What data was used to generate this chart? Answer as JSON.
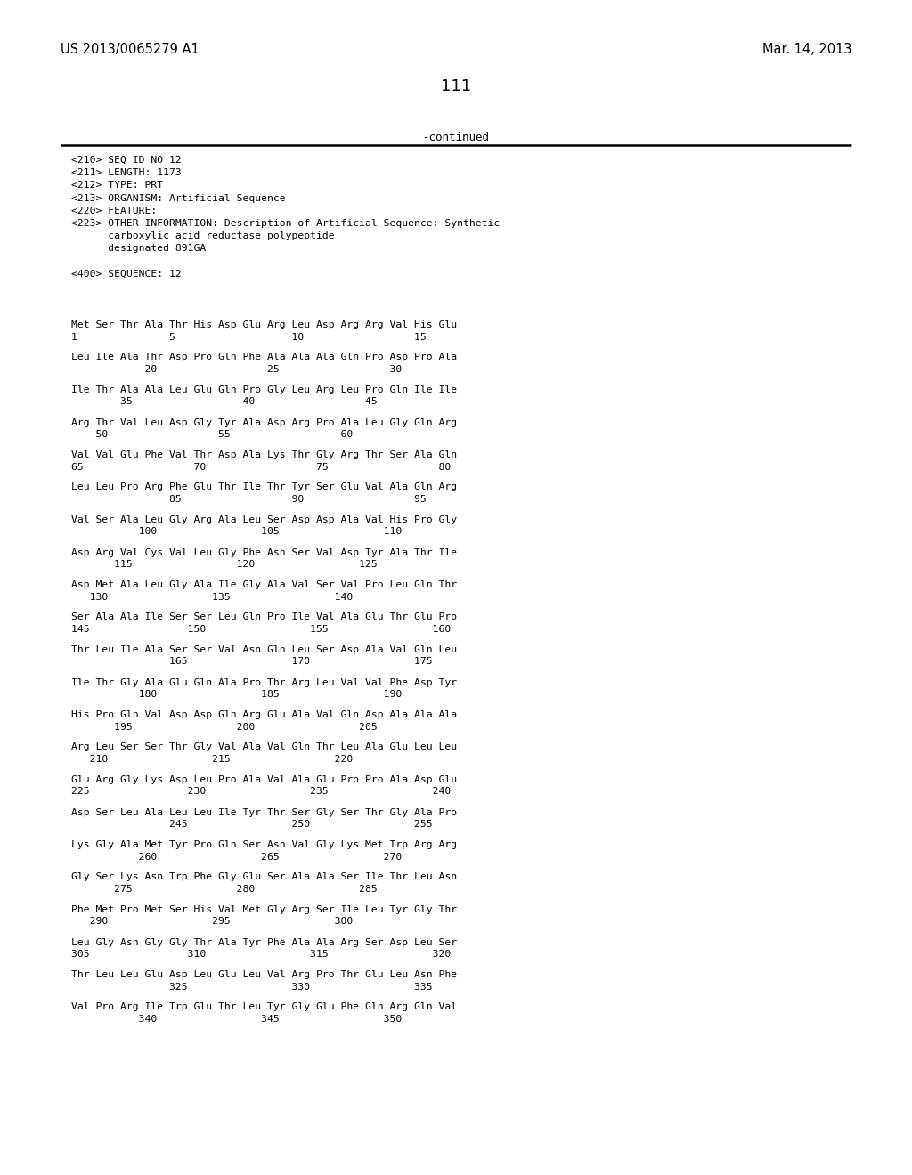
{
  "left_header": "US 2013/0065279 A1",
  "right_header": "Mar. 14, 2013",
  "page_number": "111",
  "continued_label": "-continued",
  "metadata_lines": [
    "<210> SEQ ID NO 12",
    "<211> LENGTH: 1173",
    "<212> TYPE: PRT",
    "<213> ORGANISM: Artificial Sequence",
    "<220> FEATURE:",
    "<223> OTHER INFORMATION: Description of Artificial Sequence: Synthetic",
    "      carboxylic acid reductase polypeptide",
    "      designated 891GA",
    "",
    "<400> SEQUENCE: 12"
  ],
  "sequence_blocks": [
    [
      "Met Ser Thr Ala Thr His Asp Glu Arg Leu Asp Arg Arg Val His Glu",
      "1               5                   10                  15"
    ],
    [
      "Leu Ile Ala Thr Asp Pro Gln Phe Ala Ala Ala Gln Pro Asp Pro Ala",
      "            20                  25                  30"
    ],
    [
      "Ile Thr Ala Ala Leu Glu Gln Pro Gly Leu Arg Leu Pro Gln Ile Ile",
      "        35                  40                  45"
    ],
    [
      "Arg Thr Val Leu Asp Gly Tyr Ala Asp Arg Pro Ala Leu Gly Gln Arg",
      "    50                  55                  60"
    ],
    [
      "Val Val Glu Phe Val Thr Asp Ala Lys Thr Gly Arg Thr Ser Ala Gln",
      "65                  70                  75                  80"
    ],
    [
      "Leu Leu Pro Arg Phe Glu Thr Ile Thr Tyr Ser Glu Val Ala Gln Arg",
      "                85                  90                  95"
    ],
    [
      "Val Ser Ala Leu Gly Arg Ala Leu Ser Asp Asp Ala Val His Pro Gly",
      "           100                 105                 110"
    ],
    [
      "Asp Arg Val Cys Val Leu Gly Phe Asn Ser Val Asp Tyr Ala Thr Ile",
      "       115                 120                 125"
    ],
    [
      "Asp Met Ala Leu Gly Ala Ile Gly Ala Val Ser Val Pro Leu Gln Thr",
      "   130                 135                 140"
    ],
    [
      "Ser Ala Ala Ile Ser Ser Leu Gln Pro Ile Val Ala Glu Thr Glu Pro",
      "145                150                 155                 160"
    ],
    [
      "Thr Leu Ile Ala Ser Ser Val Asn Gln Leu Ser Asp Ala Val Gln Leu",
      "                165                 170                 175"
    ],
    [
      "Ile Thr Gly Ala Glu Gln Ala Pro Thr Arg Leu Val Val Phe Asp Tyr",
      "           180                 185                 190"
    ],
    [
      "His Pro Gln Val Asp Asp Gln Arg Glu Ala Val Gln Asp Ala Ala Ala",
      "       195                 200                 205"
    ],
    [
      "Arg Leu Ser Ser Thr Gly Val Ala Val Gln Thr Leu Ala Glu Leu Leu",
      "   210                 215                 220"
    ],
    [
      "Glu Arg Gly Lys Asp Leu Pro Ala Val Ala Glu Pro Pro Ala Asp Glu",
      "225                230                 235                 240"
    ],
    [
      "Asp Ser Leu Ala Leu Leu Ile Tyr Thr Ser Gly Ser Thr Gly Ala Pro",
      "                245                 250                 255"
    ],
    [
      "Lys Gly Ala Met Tyr Pro Gln Ser Asn Val Gly Lys Met Trp Arg Arg",
      "           260                 265                 270"
    ],
    [
      "Gly Ser Lys Asn Trp Phe Gly Glu Ser Ala Ala Ser Ile Thr Leu Asn",
      "       275                 280                 285"
    ],
    [
      "Phe Met Pro Met Ser His Val Met Gly Arg Ser Ile Leu Tyr Gly Thr",
      "   290                 295                 300"
    ],
    [
      "Leu Gly Asn Gly Gly Thr Ala Tyr Phe Ala Ala Arg Ser Asp Leu Ser",
      "305                310                 315                 320"
    ],
    [
      "Thr Leu Leu Glu Asp Leu Glu Leu Val Arg Pro Thr Glu Leu Asn Phe",
      "                325                 330                 335"
    ],
    [
      "Val Pro Arg Ile Trp Glu Thr Leu Tyr Gly Glu Phe Gln Arg Gln Val",
      "           340                 345                 350"
    ]
  ]
}
